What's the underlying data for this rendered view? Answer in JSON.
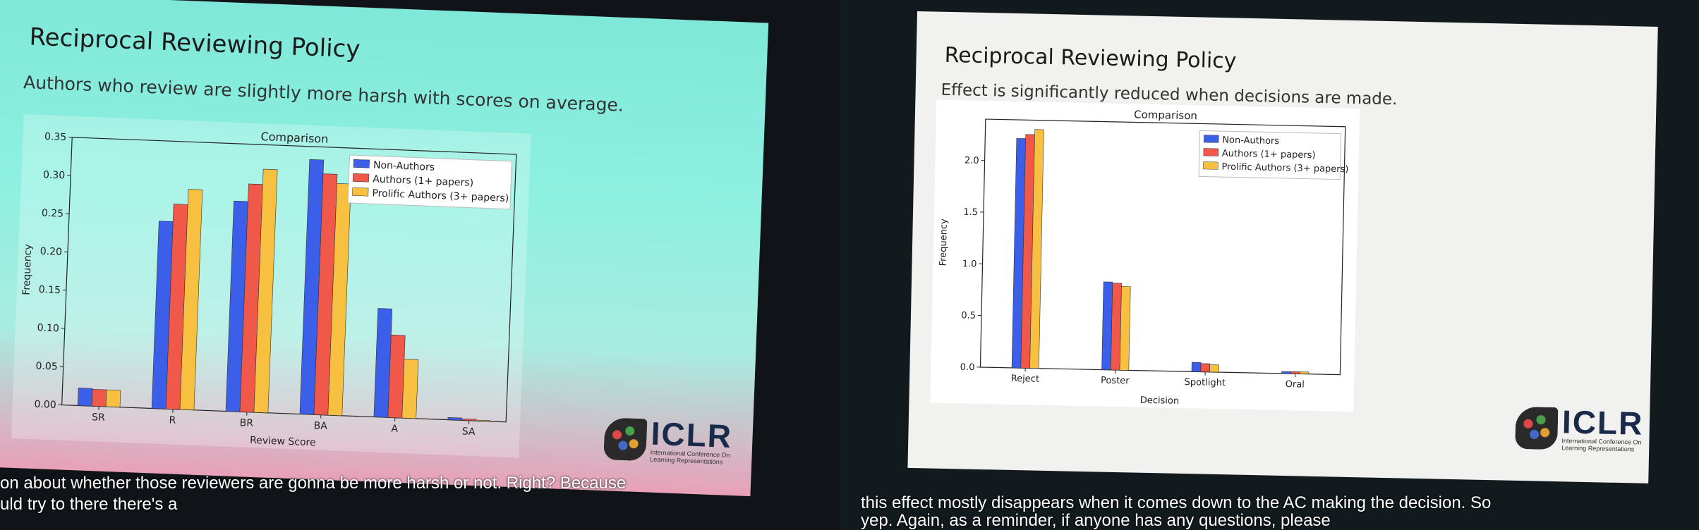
{
  "left": {
    "title": "Reciprocal Reviewing Policy",
    "subtitle": "Authors who review are slightly more harsh with scores on average.",
    "caption_line1": "on about whether those reviewers are gonna be more harsh or not. Right? Because",
    "caption_line2": "uld try to there there's a",
    "logo": "ICLR",
    "logo_sub": "International Conference On Learning Representations"
  },
  "right": {
    "title": "Reciprocal Reviewing Policy",
    "subtitle": "Effect is significantly reduced when decisions are made.",
    "caption_line1": "this effect mostly disappears when it comes down to the AC making the decision. So",
    "caption_line2": "yep. Again, as a reminder, if anyone has any questions, please",
    "logo": "ICLR",
    "logo_sub": "International Conference On Learning Representations"
  },
  "colors": {
    "non_authors": "#3b5fe8",
    "authors": "#f0584a",
    "prolific": "#f7c040"
  },
  "chart_data": [
    {
      "type": "bar",
      "title": "Comparison",
      "xlabel": "Review Score",
      "ylabel": "Frequency",
      "categories": [
        "SR",
        "R",
        "BR",
        "BA",
        "A",
        "SA"
      ],
      "ylim": [
        0,
        0.35
      ],
      "yticks": [
        "0.00",
        "0.05",
        "0.10",
        "0.15",
        "0.20",
        "0.25",
        "0.30",
        "0.35"
      ],
      "legend": "upper right",
      "series": [
        {
          "name": "Non-Authors",
          "values": [
            0.023,
            0.245,
            0.275,
            0.333,
            0.142,
            0.003
          ]
        },
        {
          "name": "Authors (1+ papers)",
          "values": [
            0.022,
            0.268,
            0.298,
            0.315,
            0.108,
            0.002
          ]
        },
        {
          "name": "Prolific Authors (3+ papers)",
          "values": [
            0.022,
            0.288,
            0.318,
            0.303,
            0.077,
            0.001
          ]
        }
      ]
    },
    {
      "type": "bar",
      "title": "Comparison",
      "xlabel": "Decision",
      "ylabel": "Frequency",
      "categories": [
        "Reject",
        "Poster",
        "Spotlight",
        "Oral"
      ],
      "ylim": [
        0,
        2.4
      ],
      "yticks": [
        "0.0",
        "0.5",
        "1.0",
        "1.5",
        "2.0"
      ],
      "legend": "upper right",
      "series": [
        {
          "name": "Non-Authors",
          "values": [
            2.22,
            0.85,
            0.09,
            0.02
          ]
        },
        {
          "name": "Authors (1+ papers)",
          "values": [
            2.26,
            0.84,
            0.08,
            0.02
          ]
        },
        {
          "name": "Prolific Authors (3+ papers)",
          "values": [
            2.31,
            0.81,
            0.07,
            0.02
          ]
        }
      ]
    }
  ]
}
